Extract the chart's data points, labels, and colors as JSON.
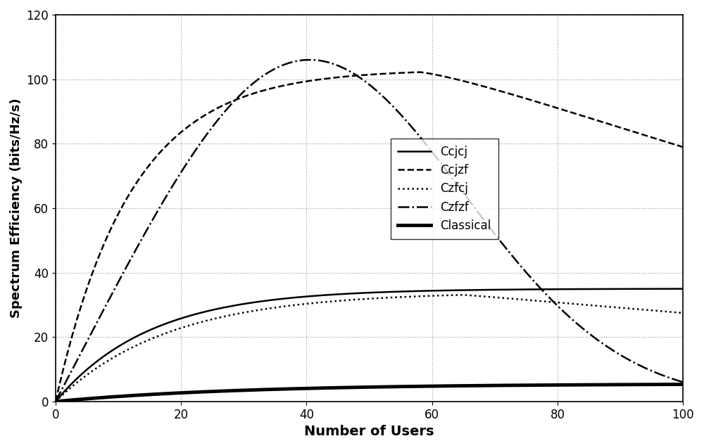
{
  "title": "",
  "xlabel": "Number of Users",
  "ylabel": "Spectrum Efficiency (bits/Hz/s)",
  "xlim": [
    0,
    100
  ],
  "ylim": [
    0,
    120
  ],
  "xticks": [
    0,
    20,
    40,
    60,
    80,
    100
  ],
  "yticks": [
    0,
    20,
    40,
    60,
    80,
    100,
    120
  ],
  "legend_labels": [
    "Ccjcj",
    "Ccjzf",
    "Czfcj",
    "Czfzf",
    "Classical"
  ],
  "background_color": "#ffffff",
  "grid_color": "#888888"
}
